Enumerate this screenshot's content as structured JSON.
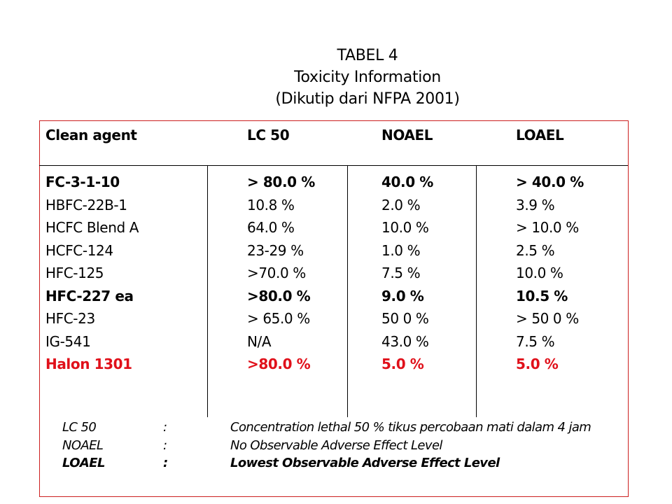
{
  "title": {
    "line1": "TABEL 4",
    "line2": "Toxicity Information",
    "line3": "(Dikutip dari NFPA 2001)"
  },
  "table": {
    "headers": [
      "Clean agent",
      "LC 50",
      "NOAEL",
      "LOAEL"
    ],
    "rows": [
      {
        "style": "bold",
        "cells": [
          "FC-3-1-10",
          "> 80.0 %",
          "40.0 %",
          "> 40.0 %"
        ]
      },
      {
        "style": "normal",
        "cells": [
          "HBFC-22B-1",
          "10.8 %",
          "2.0 %",
          "3.9 %"
        ]
      },
      {
        "style": "normal",
        "cells": [
          "HCFC Blend A",
          "64.0 %",
          "10.0 %",
          "> 10.0 %"
        ]
      },
      {
        "style": "normal",
        "cells": [
          "HCFC-124",
          "23-29 %",
          "1.0 %",
          "2.5 %"
        ]
      },
      {
        "style": "normal",
        "cells": [
          "HFC-125",
          ">70.0 %",
          "7.5 %",
          "10.0 %"
        ]
      },
      {
        "style": "bold",
        "cells": [
          "HFC-227 ea",
          ">80.0 %",
          "9.0 %",
          "10.5 %"
        ]
      },
      {
        "style": "normal",
        "cells": [
          "HFC-23",
          "> 65.0 %",
          "50 0 %",
          "> 50 0 %"
        ]
      },
      {
        "style": "normal",
        "cells": [
          "IG-541",
          "N/A",
          "43.0 %",
          "7.5 %"
        ]
      },
      {
        "style": "red",
        "cells": [
          "Halon 1301",
          ">80.0 %",
          "5.0 %",
          "5.0 %"
        ]
      }
    ],
    "highlight_color": "#e0101a",
    "frame_color": "#cc2020"
  },
  "notes": [
    {
      "term": "LC 50",
      "sep": ":",
      "definition": "Concentration lethal 50 % tikus percobaan mati dalam 4 jam"
    },
    {
      "term": "NOAEL",
      "sep": ":",
      "definition": "No  Observable Adverse Effect Level"
    },
    {
      "term": "LOAEL",
      "sep": ":",
      "definition": "Lowest Observable Adverse Effect Level"
    }
  ]
}
